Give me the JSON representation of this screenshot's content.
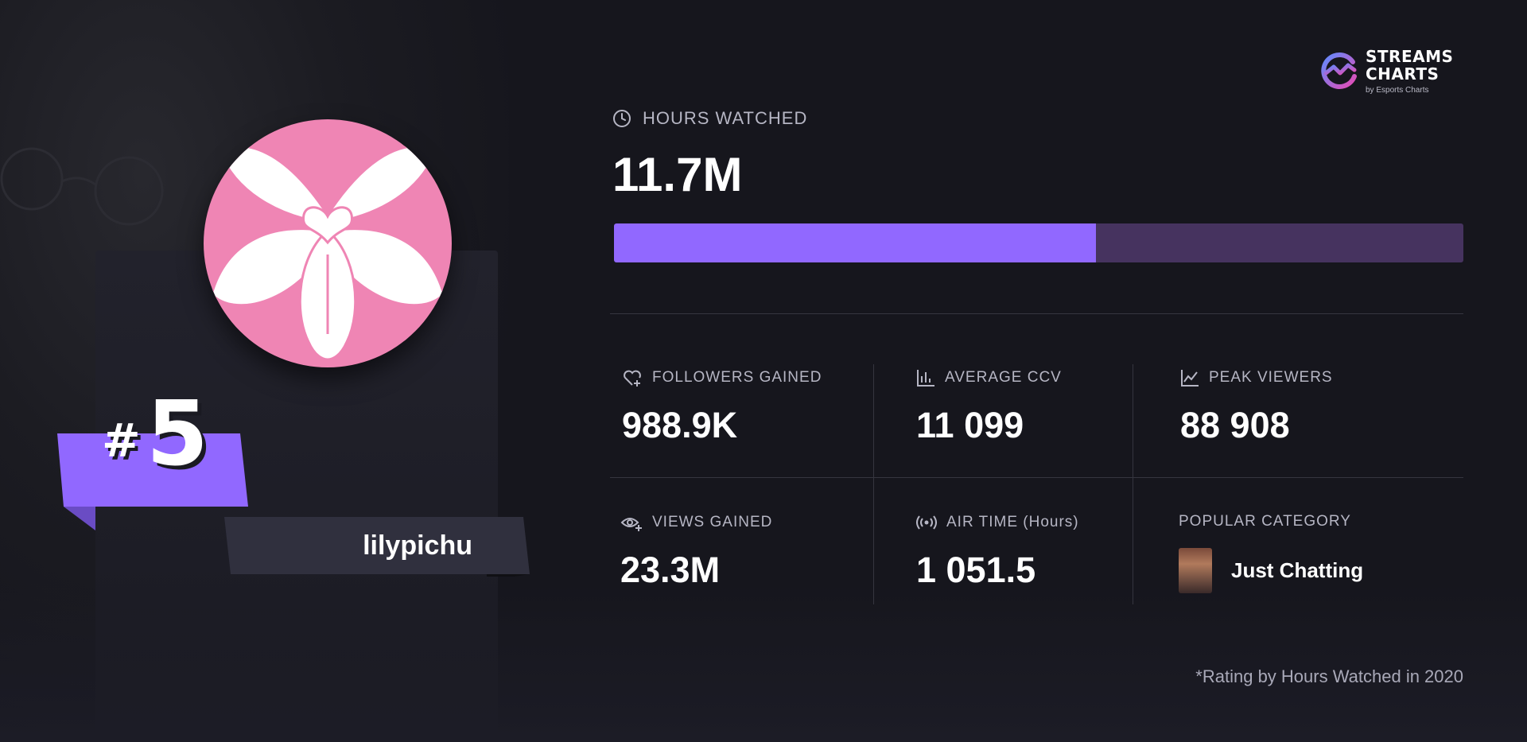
{
  "brand": {
    "line1": "STREAMS",
    "line2": "CHARTS",
    "sub": "by Esports Charts",
    "gradient": [
      "#5f6bff",
      "#e64bb4"
    ]
  },
  "streamer": {
    "rank_hash": "#",
    "rank": "5",
    "name": "lilypichu",
    "avatar_bg": "#ef85b4"
  },
  "hours": {
    "label": "HOURS WATCHED",
    "value": "11.7M",
    "progress": 0.567,
    "fill_color": "#9168ff",
    "track_color": "#46335f"
  },
  "stats": {
    "followers": {
      "label": "FOLLOWERS GAINED",
      "value": "988.9K",
      "icon": "heart-plus-icon"
    },
    "avg_ccv": {
      "label": "AVERAGE CCV",
      "value": "11 099",
      "icon": "chart-bars-icon"
    },
    "peak": {
      "label": "PEAK VIEWERS",
      "value": "88 908",
      "icon": "line-chart-icon"
    },
    "views": {
      "label": "VIEWS GAINED",
      "value": "23.3M",
      "icon": "eye-plus-icon"
    },
    "airtime": {
      "label": "AIR TIME (Hours)",
      "value": "1 051.5",
      "icon": "broadcast-icon"
    },
    "category": {
      "label": "POPULAR CATEGORY",
      "value": "Just Chatting"
    }
  },
  "footnote": "*Rating by Hours Watched in 2020"
}
